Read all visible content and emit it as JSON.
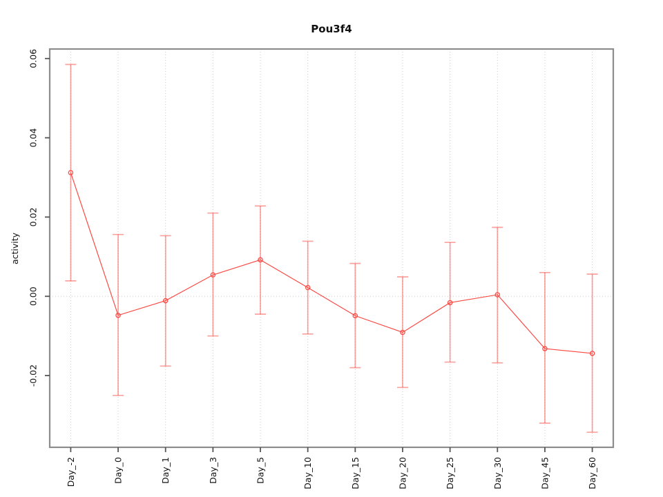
{
  "chart_data": {
    "type": "line",
    "title": "Pou3f4",
    "xlabel": "",
    "ylabel": "activity",
    "categories": [
      "Day_-2",
      "Day_0",
      "Day_1",
      "Day_3",
      "Day_5",
      "Day_10",
      "Day_15",
      "Day_20",
      "Day_25",
      "Day_30",
      "Day_45",
      "Day_60"
    ],
    "series": [
      {
        "name": "activity",
        "marker": "open-circle",
        "values": [
          0.0312,
          -0.0048,
          -0.0011,
          0.0054,
          0.0092,
          0.0022,
          -0.0049,
          -0.0091,
          -0.0016,
          0.0004,
          -0.0132,
          -0.0144
        ],
        "error_upper": [
          0.0585,
          0.0156,
          0.0153,
          0.021,
          0.0228,
          0.0139,
          0.0083,
          0.0049,
          0.0136,
          0.0174,
          0.006,
          0.0056
        ],
        "error_lower": [
          0.0039,
          -0.025,
          -0.0176,
          -0.01,
          -0.0045,
          -0.0095,
          -0.018,
          -0.023,
          -0.0166,
          -0.0168,
          -0.032,
          -0.0343
        ]
      }
    ],
    "yticks": [
      {
        "value": -0.02,
        "label": "-0.02"
      },
      {
        "value": 0.0,
        "label": "0.00"
      },
      {
        "value": 0.02,
        "label": "0.02"
      },
      {
        "value": 0.04,
        "label": "0.04"
      },
      {
        "value": 0.06,
        "label": "0.06"
      }
    ],
    "ylim": [
      -0.0381,
      0.0624
    ],
    "grid": {
      "vertical_dotted_per_category": true,
      "horizontal_dotted_at_zero": true
    },
    "legend": "none",
    "colors": {
      "line": "#fb4a44",
      "marker": "#fb4a44",
      "error_bar": "rgba(252,74,68,0.52)",
      "grid": "#c9c9c9",
      "frame": "#8c8c8c",
      "tick": "#555555",
      "text": "#111111",
      "background": "#ffffff"
    }
  }
}
